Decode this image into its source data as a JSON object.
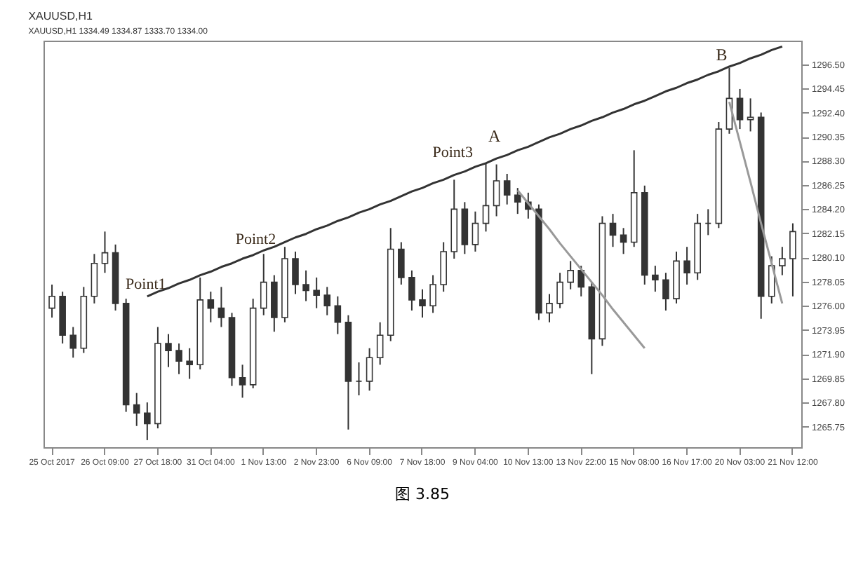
{
  "chart_data": {
    "type": "candlestick",
    "title": "XAUUSD,H1",
    "subtitle": "XAUUSD,H1  1334.49 1334.87 1333.70 1334.00",
    "color": "#333333",
    "categories": [
      "25 Oct 2017",
      null,
      null,
      null,
      null,
      "26 Oct 09:00",
      null,
      null,
      null,
      null,
      "27 Oct 18:00",
      null,
      null,
      null,
      null,
      "31 Oct 04:00",
      null,
      null,
      null,
      null,
      "1 Nov 13:00",
      null,
      null,
      null,
      null,
      "2 Nov 23:00",
      null,
      null,
      null,
      null,
      "6 Nov 09:00",
      null,
      null,
      null,
      null,
      "7 Nov 18:00",
      null,
      null,
      null,
      null,
      "9 Nov 04:00",
      null,
      null,
      null,
      null,
      "10 Nov 13:00",
      null,
      null,
      null,
      null,
      "13 Nov 22:00",
      null,
      null,
      null,
      null,
      "15 Nov 08:00",
      null,
      null,
      null,
      null,
      "16 Nov 17:00",
      null,
      null,
      null,
      null,
      "20 Nov 03:00",
      null,
      null,
      null,
      null,
      "21 Nov 12:00"
    ],
    "ohlc": [
      [
        1275.8,
        1277.8,
        1275.0,
        1276.8
      ],
      [
        1276.8,
        1277.2,
        1272.8,
        1273.5
      ],
      [
        1273.5,
        1274.2,
        1271.6,
        1272.4
      ],
      [
        1272.4,
        1277.6,
        1272.0,
        1276.8
      ],
      [
        1276.8,
        1280.4,
        1276.2,
        1279.6
      ],
      [
        1279.6,
        1282.3,
        1278.8,
        1280.5
      ],
      [
        1280.5,
        1281.2,
        1275.6,
        1276.2
      ],
      [
        1276.2,
        1276.6,
        1267.0,
        1267.6
      ],
      [
        1267.6,
        1268.6,
        1265.8,
        1266.9
      ],
      [
        1266.9,
        1267.8,
        1264.6,
        1266.0
      ],
      [
        1266.0,
        1274.2,
        1265.6,
        1272.8
      ],
      [
        1272.8,
        1273.6,
        1270.8,
        1272.2
      ],
      [
        1272.2,
        1272.8,
        1270.2,
        1271.3
      ],
      [
        1271.3,
        1272.4,
        1269.8,
        1271.0
      ],
      [
        1271.0,
        1278.4,
        1270.6,
        1276.5
      ],
      [
        1276.5,
        1277.2,
        1274.6,
        1275.8
      ],
      [
        1275.8,
        1277.6,
        1274.2,
        1275.0
      ],
      [
        1275.0,
        1275.4,
        1269.2,
        1269.9
      ],
      [
        1269.9,
        1271.0,
        1268.2,
        1269.3
      ],
      [
        1269.3,
        1276.6,
        1269.0,
        1275.8
      ],
      [
        1275.8,
        1280.4,
        1275.2,
        1278.0
      ],
      [
        1278.0,
        1278.6,
        1273.8,
        1275.0
      ],
      [
        1275.0,
        1281.0,
        1274.6,
        1280.0
      ],
      [
        1280.0,
        1280.6,
        1277.0,
        1277.8
      ],
      [
        1277.8,
        1279.0,
        1276.4,
        1277.3
      ],
      [
        1277.3,
        1278.4,
        1275.8,
        1276.9
      ],
      [
        1276.9,
        1277.6,
        1275.2,
        1276.0
      ],
      [
        1276.0,
        1276.8,
        1273.6,
        1274.6
      ],
      [
        1274.6,
        1275.2,
        1265.5,
        1269.6
      ],
      [
        1269.6,
        1271.2,
        1268.4,
        1269.6
      ],
      [
        1269.6,
        1272.4,
        1268.8,
        1271.6
      ],
      [
        1271.6,
        1274.6,
        1271.0,
        1273.5
      ],
      [
        1273.5,
        1282.6,
        1273.0,
        1280.8
      ],
      [
        1280.8,
        1281.4,
        1277.8,
        1278.4
      ],
      [
        1278.4,
        1279.0,
        1275.6,
        1276.5
      ],
      [
        1276.5,
        1277.4,
        1275.0,
        1276.0
      ],
      [
        1276.0,
        1278.6,
        1275.4,
        1277.8
      ],
      [
        1277.8,
        1281.4,
        1277.2,
        1280.6
      ],
      [
        1280.6,
        1286.7,
        1280.0,
        1284.2
      ],
      [
        1284.2,
        1284.8,
        1280.4,
        1281.2
      ],
      [
        1281.2,
        1284.0,
        1280.6,
        1283.0
      ],
      [
        1283.0,
        1288.1,
        1282.3,
        1284.5
      ],
      [
        1284.5,
        1288.0,
        1283.6,
        1286.6
      ],
      [
        1286.6,
        1287.2,
        1284.6,
        1285.4
      ],
      [
        1285.4,
        1286.0,
        1283.8,
        1284.8
      ],
      [
        1284.8,
        1285.6,
        1283.4,
        1284.2
      ],
      [
        1284.2,
        1284.6,
        1274.8,
        1275.4
      ],
      [
        1275.4,
        1277.0,
        1274.6,
        1276.2
      ],
      [
        1276.2,
        1278.8,
        1275.8,
        1278.0
      ],
      [
        1278.0,
        1279.8,
        1277.4,
        1279.0
      ],
      [
        1279.0,
        1279.4,
        1276.8,
        1277.6
      ],
      [
        1277.6,
        1278.0,
        1270.2,
        1273.2
      ],
      [
        1273.2,
        1283.6,
        1272.6,
        1283.0
      ],
      [
        1283.0,
        1283.8,
        1281.0,
        1282.0
      ],
      [
        1282.0,
        1282.6,
        1280.4,
        1281.4
      ],
      [
        1281.4,
        1289.2,
        1281.0,
        1285.6
      ],
      [
        1285.6,
        1286.2,
        1277.8,
        1278.6
      ],
      [
        1278.6,
        1279.4,
        1277.2,
        1278.2
      ],
      [
        1278.2,
        1278.8,
        1275.6,
        1276.6
      ],
      [
        1276.6,
        1280.6,
        1276.2,
        1279.8
      ],
      [
        1279.8,
        1281.0,
        1277.8,
        1278.8
      ],
      [
        1278.8,
        1283.8,
        1278.2,
        1283.0
      ],
      [
        1283.0,
        1284.2,
        1282.0,
        1283.0
      ],
      [
        1283.0,
        1291.6,
        1282.6,
        1291.0
      ],
      [
        1291.0,
        1296.2,
        1290.6,
        1293.6
      ],
      [
        1293.6,
        1294.4,
        1291.0,
        1291.8
      ],
      [
        1291.8,
        1293.6,
        1290.8,
        1292.0
      ],
      [
        1292.0,
        1292.4,
        1274.9,
        1276.8
      ],
      [
        1276.8,
        1280.2,
        1276.2,
        1279.4
      ],
      [
        1279.4,
        1281.0,
        1278.6,
        1280.0
      ],
      [
        1280.0,
        1283.0,
        1276.8,
        1282.3
      ]
    ],
    "series": [
      {
        "type": "line",
        "color": "#333333",
        "values": [
          null,
          null,
          null,
          null,
          null,
          null,
          null,
          null,
          null,
          1276.8,
          1277.2,
          1277.5,
          1277.9,
          1278.2,
          1278.6,
          1278.9,
          1279.3,
          1279.6,
          1280.0,
          1280.3,
          1280.7,
          1281.0,
          1281.4,
          1281.8,
          1282.1,
          1282.5,
          1282.8,
          1283.2,
          1283.5,
          1283.9,
          1284.2,
          1284.6,
          1284.9,
          1285.3,
          1285.7,
          1286.0,
          1286.4,
          1286.7,
          1287.1,
          1287.4,
          1287.8,
          1288.1,
          1288.5,
          1288.8,
          1289.2,
          1289.5,
          1289.9,
          1290.3,
          1290.6,
          1291.0,
          1291.3,
          1291.7,
          1292.0,
          1292.4,
          1292.7,
          1293.1,
          1293.4,
          1293.8,
          1294.2,
          1294.5,
          1294.9,
          1295.2,
          1295.6,
          1295.9,
          1296.3,
          1296.6,
          1297.0,
          1297.3,
          1297.7,
          1298.0,
          null
        ]
      },
      {
        "type": "line",
        "color": "#999999",
        "values": [
          null,
          null,
          null,
          null,
          null,
          null,
          null,
          null,
          null,
          null,
          null,
          null,
          null,
          null,
          null,
          null,
          null,
          null,
          null,
          null,
          null,
          null,
          null,
          null,
          null,
          null,
          null,
          null,
          null,
          null,
          null,
          null,
          null,
          null,
          null,
          null,
          null,
          null,
          null,
          null,
          null,
          null,
          null,
          null,
          1285.8,
          1284.7,
          1283.6,
          1282.5,
          1281.3,
          1280.2,
          1279.1,
          1278.0,
          1276.9,
          1275.7,
          1274.6,
          1273.5,
          1272.4,
          null,
          null,
          null,
          null,
          null,
          null,
          null,
          null,
          null,
          null,
          null,
          null,
          null,
          null
        ]
      },
      {
        "type": "line",
        "color": "#999999",
        "values": [
          null,
          null,
          null,
          null,
          null,
          null,
          null,
          null,
          null,
          null,
          null,
          null,
          null,
          null,
          null,
          null,
          null,
          null,
          null,
          null,
          null,
          null,
          null,
          null,
          null,
          null,
          null,
          null,
          null,
          null,
          null,
          null,
          null,
          null,
          null,
          null,
          null,
          null,
          null,
          null,
          null,
          null,
          null,
          null,
          null,
          null,
          null,
          null,
          null,
          null,
          null,
          null,
          null,
          null,
          null,
          null,
          null,
          null,
          null,
          null,
          null,
          null,
          null,
          null,
          1293.3,
          1289.9,
          1286.5,
          1283.0,
          1279.6,
          1276.2,
          null
        ]
      }
    ],
    "ylim": [
      1264.0,
      1298.5
    ],
    "yticks": [
      {
        "value": 1265.75,
        "label": "1265.75"
      },
      {
        "value": 1267.8,
        "label": "1267.80"
      },
      {
        "value": 1269.85,
        "label": "1269.85"
      },
      {
        "value": 1271.9,
        "label": "1271.90"
      },
      {
        "value": 1273.95,
        "label": "1273.95"
      },
      {
        "value": 1276.0,
        "label": "1276.00"
      },
      {
        "value": 1278.05,
        "label": "1278.05"
      },
      {
        "value": 1280.1,
        "label": "1280.10"
      },
      {
        "value": 1282.15,
        "label": "1282.15"
      },
      {
        "value": 1284.2,
        "label": "1284.20"
      },
      {
        "value": 1286.25,
        "label": "1286.25"
      },
      {
        "value": 1288.3,
        "label": "1288.30"
      },
      {
        "value": 1290.35,
        "label": "1290.35"
      },
      {
        "value": 1292.4,
        "label": "1292.40"
      },
      {
        "value": 1294.45,
        "label": "1294.45"
      },
      {
        "value": 1296.5,
        "label": "1296.50"
      }
    ],
    "annotations": [
      "Point1",
      "Point2",
      "Point3",
      "A",
      "B",
      "图 3.85"
    ]
  }
}
